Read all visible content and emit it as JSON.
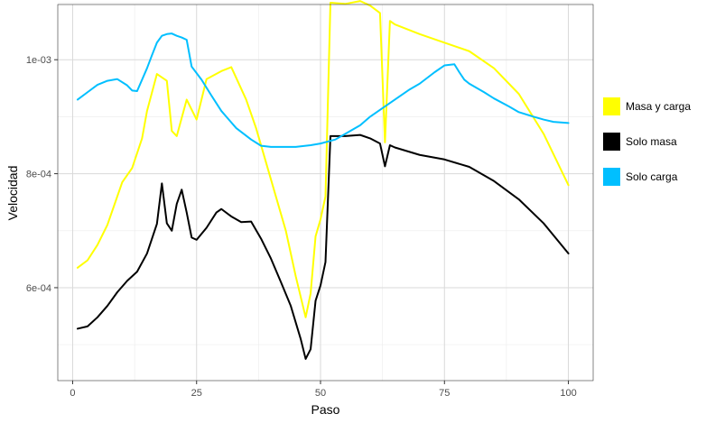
{
  "chart_data": {
    "type": "line",
    "xlabel": "Paso",
    "ylabel": "Velocidad",
    "xlim": [
      -3,
      105
    ],
    "ylim": [
      0.0004369,
      0.0010969
    ],
    "x_ticks": [
      {
        "value": 0,
        "label": "0"
      },
      {
        "value": 25,
        "label": "25"
      },
      {
        "value": 50,
        "label": "50"
      },
      {
        "value": 75,
        "label": "75"
      },
      {
        "value": 100,
        "label": "100"
      }
    ],
    "y_ticks": [
      {
        "value": 0.0006,
        "label": "6e-04"
      },
      {
        "value": 0.0008,
        "label": "8e-04"
      },
      {
        "value": 0.001,
        "label": "1e-03"
      }
    ],
    "y_minor": [
      0.0005,
      0.0007,
      0.0009,
      0.0011
    ],
    "x_minor": [
      12.5,
      37.5,
      62.5,
      87.5
    ],
    "grid": true,
    "legend_position": "right",
    "series": [
      {
        "name": "Masa y carga",
        "color": "#FFFF00",
        "x": [
          1,
          3,
          5,
          7,
          10,
          12,
          14,
          15,
          17,
          19,
          20,
          21,
          23,
          25,
          27,
          30,
          32,
          35,
          37,
          40,
          43,
          45,
          47,
          48,
          49,
          50,
          51,
          52,
          55,
          58,
          60,
          62,
          63,
          64,
          65,
          70,
          75,
          80,
          85,
          90,
          95,
          100
        ],
        "y": [
          0.000635,
          0.000648,
          0.000675,
          0.00071,
          0.000785,
          0.00081,
          0.000862,
          0.00091,
          0.000975,
          0.000963,
          0.000875,
          0.000866,
          0.00093,
          0.000895,
          0.000966,
          0.00098,
          0.000987,
          0.00093,
          0.00088,
          0.00079,
          0.0007,
          0.00062,
          0.000548,
          0.00059,
          0.00069,
          0.00072,
          0.00076,
          0.0011,
          0.001098,
          0.001103,
          0.001095,
          0.001082,
          0.000855,
          0.001068,
          0.001062,
          0.001045,
          0.00103,
          0.001015,
          0.000985,
          0.00094,
          0.00087,
          0.00078
        ]
      },
      {
        "name": "Solo masa",
        "color": "#000000",
        "x": [
          1,
          3,
          5,
          7,
          9,
          11,
          13,
          15,
          17,
          18,
          19,
          20,
          21,
          22,
          23,
          24,
          25,
          27,
          29,
          30,
          32,
          34,
          36,
          38,
          40,
          42,
          44,
          46,
          47,
          48,
          49,
          50,
          51,
          52,
          55,
          58,
          60,
          62,
          63,
          64,
          65,
          70,
          75,
          80,
          85,
          90,
          95,
          100
        ],
        "y": [
          0.000528,
          0.000532,
          0.000548,
          0.000568,
          0.000592,
          0.000612,
          0.000628,
          0.00066,
          0.000712,
          0.000783,
          0.000713,
          0.0007,
          0.000747,
          0.000772,
          0.000732,
          0.000688,
          0.000684,
          0.000705,
          0.000732,
          0.000738,
          0.000725,
          0.000715,
          0.000716,
          0.000686,
          0.000651,
          0.00061,
          0.000568,
          0.00051,
          0.000475,
          0.000492,
          0.000577,
          0.000604,
          0.000645,
          0.000866,
          0.000866,
          0.000868,
          0.000862,
          0.000853,
          0.000813,
          0.00085,
          0.000846,
          0.000833,
          0.000825,
          0.000812,
          0.000787,
          0.000755,
          0.000713,
          0.00066
        ]
      },
      {
        "name": "Solo carga",
        "color": "#00BFFF",
        "x": [
          1,
          3,
          5,
          7,
          9,
          11,
          12,
          13,
          14,
          15,
          16,
          17,
          18,
          19,
          20,
          21,
          22,
          23,
          24,
          26,
          28,
          30,
          33,
          36,
          38,
          40,
          42,
          45,
          48,
          50,
          53,
          55,
          58,
          60,
          62,
          65,
          68,
          70,
          73,
          75,
          77,
          78,
          79,
          80,
          83,
          85,
          88,
          90,
          93,
          95,
          97,
          100
        ],
        "y": [
          0.00093,
          0.000943,
          0.000956,
          0.000963,
          0.000966,
          0.000955,
          0.000946,
          0.000945,
          0.000965,
          0.000985,
          0.001008,
          0.00103,
          0.001042,
          0.001045,
          0.001046,
          0.001042,
          0.001039,
          0.001035,
          0.000988,
          0.000965,
          0.000937,
          0.00091,
          0.00088,
          0.00086,
          0.000849,
          0.000847,
          0.000847,
          0.000847,
          0.00085,
          0.000853,
          0.00086,
          0.00087,
          0.000885,
          0.0009,
          0.000912,
          0.00093,
          0.000948,
          0.000958,
          0.000978,
          0.00099,
          0.000992,
          0.000978,
          0.000965,
          0.000958,
          0.000943,
          0.000932,
          0.000918,
          0.000908,
          0.0009,
          0.000895,
          0.000891,
          0.000889
        ]
      }
    ]
  }
}
